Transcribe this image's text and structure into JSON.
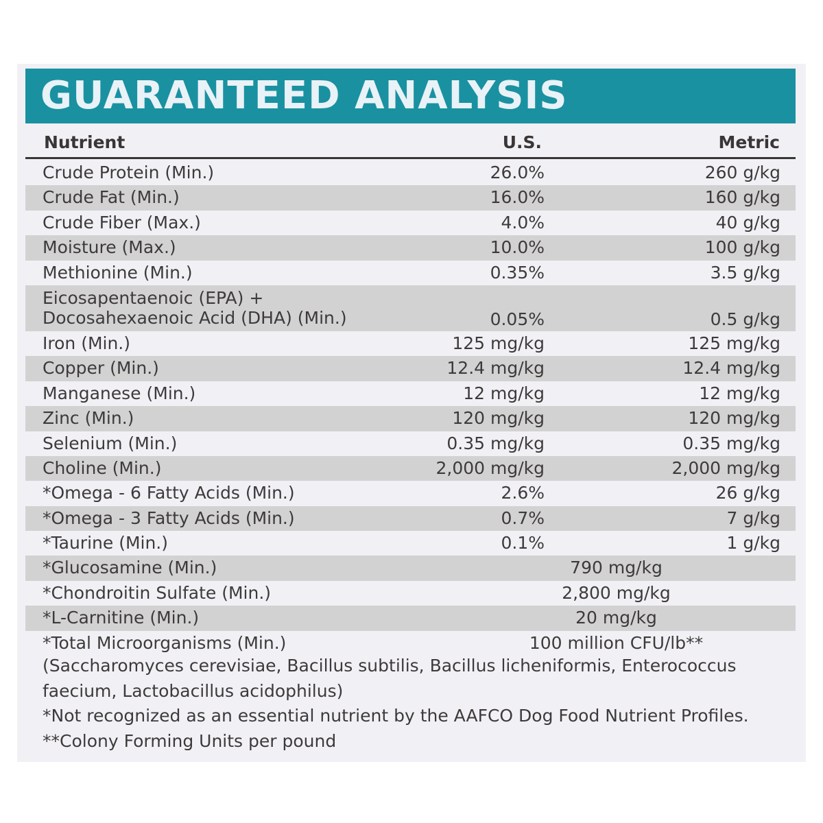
{
  "banner": {
    "title": "GUARANTEED ANALYSIS",
    "color": "#1a91a1"
  },
  "table": {
    "headers": {
      "nutrient": "Nutrient",
      "us": "U.S.",
      "metric": "Metric"
    },
    "rows": [
      {
        "nutrient": "Crude Protein (Min.)",
        "us": "26.0%",
        "metric": "260 g/kg"
      },
      {
        "nutrient": "Crude Fat (Min.)",
        "us": "16.0%",
        "metric": "160 g/kg"
      },
      {
        "nutrient": "Crude Fiber (Max.)",
        "us": "4.0%",
        "metric": "40 g/kg"
      },
      {
        "nutrient": "Moisture (Max.)",
        "us": "10.0%",
        "metric": "100 g/kg"
      },
      {
        "nutrient": "Methionine (Min.)",
        "us": "0.35%",
        "metric": "3.5 g/kg"
      },
      {
        "nutrient": "Eicosapentaenoic (EPA) +",
        "nutrient_line2": "Docosahexaenoic Acid (DHA) (Min.)",
        "us": "0.05%",
        "metric": "0.5 g/kg"
      },
      {
        "nutrient": "Iron (Min.)",
        "us": "125 mg/kg",
        "metric": "125 mg/kg"
      },
      {
        "nutrient": "Copper (Min.)",
        "us": "12.4 mg/kg",
        "metric": "12.4 mg/kg"
      },
      {
        "nutrient": "Manganese (Min.)",
        "us": "12 mg/kg",
        "metric": "12 mg/kg"
      },
      {
        "nutrient": "Zinc (Min.)",
        "us": "120 mg/kg",
        "metric": "120 mg/kg"
      },
      {
        "nutrient": "Selenium (Min.)",
        "us": "0.35 mg/kg",
        "metric": "0.35 mg/kg"
      },
      {
        "nutrient": "Choline (Min.)",
        "us": "2,000 mg/kg",
        "metric": "2,000 mg/kg"
      },
      {
        "nutrient": "*Omega - 6 Fatty Acids (Min.)",
        "us": "2.6%",
        "metric": "26 g/kg"
      },
      {
        "nutrient": "*Omega - 3 Fatty Acids (Min.)",
        "us": "0.7%",
        "metric": "7 g/kg"
      },
      {
        "nutrient": "*Taurine (Min.)",
        "us": "0.1%",
        "metric": "1 g/kg"
      },
      {
        "nutrient": "*Glucosamine (Min.)",
        "combined": "790 mg/kg"
      },
      {
        "nutrient": "*Chondroitin Sulfate (Min.)",
        "combined": "2,800 mg/kg"
      },
      {
        "nutrient": "*L-Carnitine (Min.)",
        "combined": "20 mg/kg"
      },
      {
        "nutrient": "*Total Microorganisms (Min.)",
        "combined": "100 million CFU/lb**"
      }
    ]
  },
  "notes": {
    "species_line1": "(Saccharomyces cerevisiae, Bacillus subtilis, Bacillus licheniformis, Enterococcus",
    "species_line2": "faecium, Lactobacillus acidophilus)",
    "footnote1": "*Not recognized as an essential nutrient by the AAFCO Dog Food Nutrient Profiles.",
    "footnote2": "**Colony Forming Units per pound"
  }
}
